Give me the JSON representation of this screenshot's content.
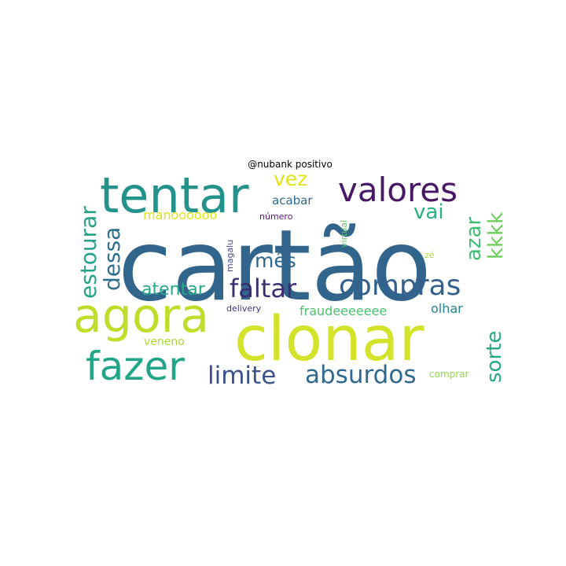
{
  "chart_data": {
    "type": "wordcloud",
    "title": "@nubank positivo",
    "words": [
      {
        "text": "cartão",
        "color": "#31658c"
      },
      {
        "text": "clonar",
        "color": "#d3e22a"
      },
      {
        "text": "tentar",
        "color": "#23928b"
      },
      {
        "text": "agora",
        "color": "#c0dd2c"
      },
      {
        "text": "fazer",
        "color": "#22a586"
      },
      {
        "text": "valores",
        "color": "#471866"
      },
      {
        "text": "compras",
        "color": "#355f8d"
      },
      {
        "text": "absurdos",
        "color": "#31688e"
      },
      {
        "text": "limite",
        "color": "#3b518b"
      },
      {
        "text": "faltar",
        "color": "#3a2d70"
      },
      {
        "text": "estourar",
        "color": "#25a387"
      },
      {
        "text": "dessa",
        "color": "#2e6f8e"
      },
      {
        "text": "mês",
        "color": "#30678d"
      },
      {
        "text": "atentar",
        "color": "#28a985"
      },
      {
        "text": "vai",
        "color": "#2aaf7f"
      },
      {
        "text": "azar",
        "color": "#40bd72"
      },
      {
        "text": "kkkk",
        "color": "#6bcc5a"
      },
      {
        "text": "sorte",
        "color": "#27a882"
      },
      {
        "text": "vez",
        "color": "#e2e418"
      },
      {
        "text": "acabar",
        "color": "#2f6b8e"
      },
      {
        "text": "manoooooo",
        "color": "#dfe318"
      },
      {
        "text": "número",
        "color": "#5c137e"
      },
      {
        "text": "virtual",
        "color": "#5ac864"
      },
      {
        "text": "magalu",
        "color": "#3e4a89"
      },
      {
        "text": "zé",
        "color": "#a5db36"
      },
      {
        "text": "delivery",
        "color": "#46327e"
      },
      {
        "text": "fraudeeeeeee",
        "color": "#4ac16d"
      },
      {
        "text": "olhar",
        "color": "#24868e"
      },
      {
        "text": "veneno",
        "color": "#a8db34"
      },
      {
        "text": "comprar",
        "color": "#8fd744"
      }
    ]
  }
}
